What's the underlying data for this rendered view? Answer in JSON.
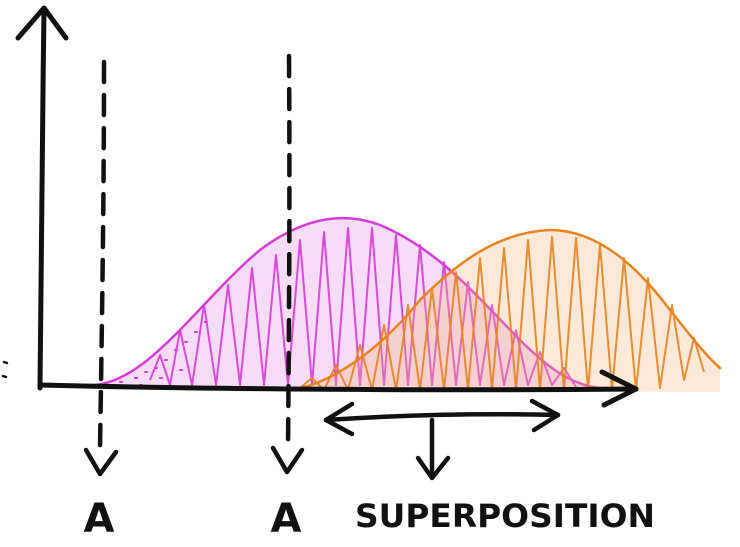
{
  "labels": {
    "marker_left": "A",
    "marker_right": "A",
    "region": "SUPERPOSITION"
  },
  "colors": {
    "ink": "#111111",
    "curve_1": "#d63bd6",
    "curve_2": "#e8821e",
    "background": "#ffffff"
  }
}
